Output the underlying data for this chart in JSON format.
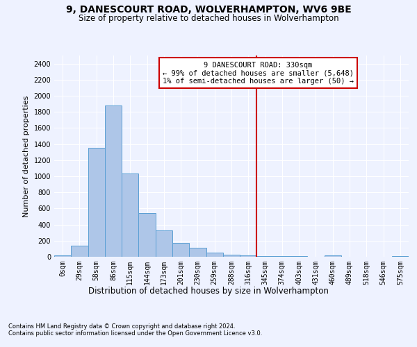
{
  "title1": "9, DANESCOURT ROAD, WOLVERHAMPTON, WV6 9BE",
  "title2": "Size of property relative to detached houses in Wolverhampton",
  "xlabel": "Distribution of detached houses by size in Wolverhampton",
  "ylabel": "Number of detached properties",
  "footer1": "Contains HM Land Registry data © Crown copyright and database right 2024.",
  "footer2": "Contains public sector information licensed under the Open Government Licence v3.0.",
  "bar_labels": [
    "0sqm",
    "29sqm",
    "58sqm",
    "86sqm",
    "115sqm",
    "144sqm",
    "173sqm",
    "201sqm",
    "230sqm",
    "259sqm",
    "288sqm",
    "316sqm",
    "345sqm",
    "374sqm",
    "403sqm",
    "431sqm",
    "460sqm",
    "489sqm",
    "518sqm",
    "546sqm",
    "575sqm"
  ],
  "bar_heights": [
    15,
    135,
    1350,
    1880,
    1035,
    540,
    330,
    170,
    110,
    50,
    25,
    20,
    10,
    5,
    5,
    2,
    15,
    2,
    2,
    2,
    10
  ],
  "bar_color": "#aec6e8",
  "bar_edgecolor": "#5a9fd4",
  "ylim": [
    0,
    2500
  ],
  "yticks": [
    0,
    200,
    400,
    600,
    800,
    1000,
    1200,
    1400,
    1600,
    1800,
    2000,
    2200,
    2400
  ],
  "vline_x": 11.5,
  "vline_color": "#cc0000",
  "annotation_title": "9 DANESCOURT ROAD: 330sqm",
  "annotation_line1": "← 99% of detached houses are smaller (5,648)",
  "annotation_line2": "1% of semi-detached houses are larger (50) →",
  "bg_color": "#eef2ff",
  "grid_color": "#ffffff",
  "title1_fontsize": 10,
  "title2_fontsize": 8.5,
  "ylabel_fontsize": 8,
  "xlabel_fontsize": 8.5,
  "tick_fontsize": 7,
  "annot_fontsize": 7.5,
  "footer_fontsize": 6
}
